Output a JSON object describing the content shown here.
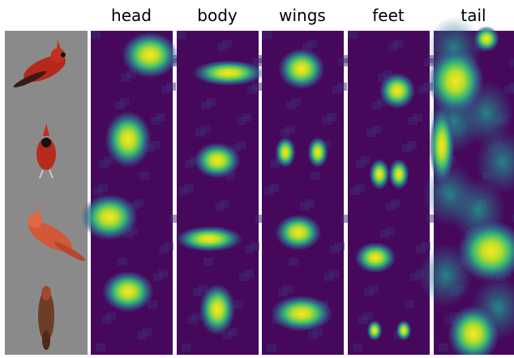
{
  "columns": [
    "head",
    "body",
    "wings",
    "feet",
    "tail"
  ]
}
